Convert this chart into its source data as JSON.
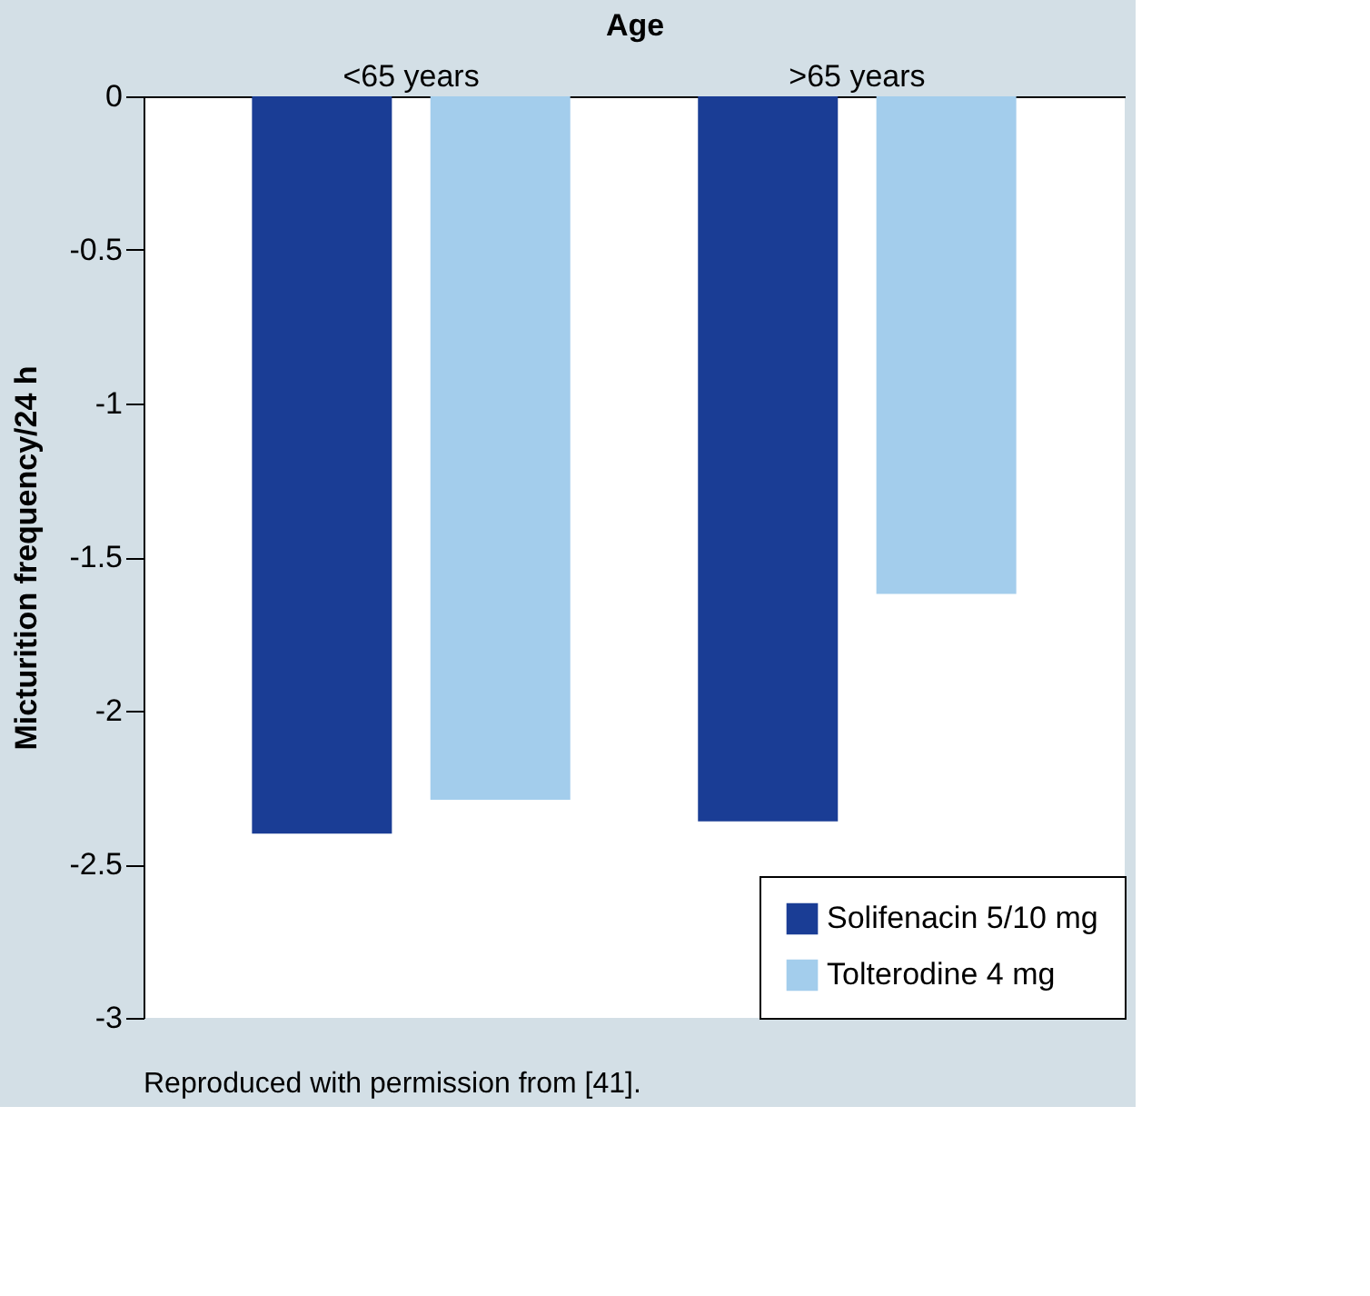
{
  "chart_data": {
    "type": "bar",
    "xlabel": "Age",
    "ylabel": "Micturition frequency/24 h",
    "categories": [
      "<65 years",
      ">65 years"
    ],
    "series": [
      {
        "name": "Solifenacin 5/10 mg",
        "color": "#1a3d95",
        "values": [
          -2.4,
          -2.36
        ]
      },
      {
        "name": "Tolterodine 4 mg",
        "color": "#a3cdec",
        "values": [
          -2.29,
          -1.62
        ]
      }
    ],
    "ylim": [
      -3,
      0
    ],
    "yticks": [
      0,
      -0.5,
      -1,
      -1.5,
      -2,
      -2.5,
      -3
    ],
    "grid": false,
    "legend": "bottom right",
    "annotations": [
      "Reproduced with permission from [41]."
    ]
  }
}
